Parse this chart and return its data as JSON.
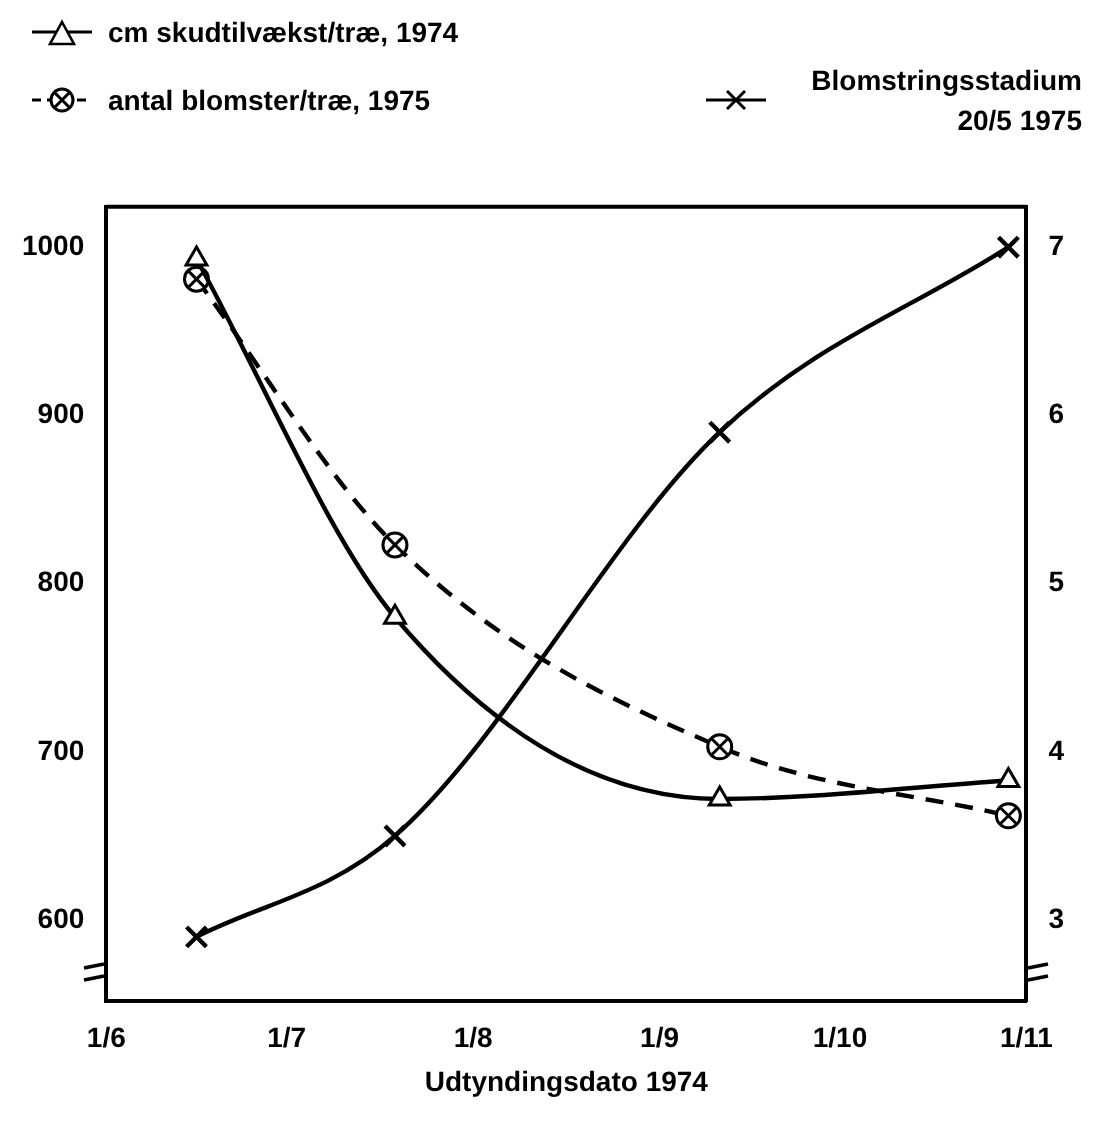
{
  "chart_data": {
    "type": "line",
    "x": [
      "1974-06-16",
      "1974-07-19",
      "1974-09-11",
      "1974-10-29"
    ],
    "series": [
      {
        "name": "cm skudtilvækst/træ, 1974",
        "color": "#000000",
        "marker": "triangle",
        "line_style": "solid",
        "values": [
          993,
          780,
          672,
          683
        ]
      },
      {
        "name": "antal blomster/træ, 1975",
        "color": "#000000",
        "marker": "circle",
        "line_style": "dashed",
        "values": [
          981,
          823,
          703,
          662
        ]
      },
      {
        "name": "Blomstringsstadium 20/5 1975",
        "color": "#000000",
        "marker": "cross",
        "line_style": "solid",
        "axis": "y2",
        "values": [
          2.9,
          3.5,
          5.9,
          7.0
        ]
      }
    ],
    "xlabel": "Udtyndingsdato 1974",
    "xlim": [
      "1974-06-01",
      "1974-11-01"
    ],
    "xticks": [
      {
        "value": "1974-06-01",
        "label": "1/6"
      },
      {
        "value": "1974-07-01",
        "label": "1/7"
      },
      {
        "value": "1974-08-01",
        "label": "1/8"
      },
      {
        "value": "1974-09-01",
        "label": "1/9"
      },
      {
        "value": "1974-10-01",
        "label": "1/10"
      },
      {
        "value": "1974-11-01",
        "label": "1/11"
      }
    ],
    "ylim": [
      552,
      1024
    ],
    "yticks": [
      600,
      700,
      800,
      900,
      1000
    ],
    "y2lim": [
      2.52,
      7.24
    ],
    "y2ticks": [
      3,
      4,
      5,
      6,
      7
    ],
    "grid": false,
    "legend": "top"
  }
}
